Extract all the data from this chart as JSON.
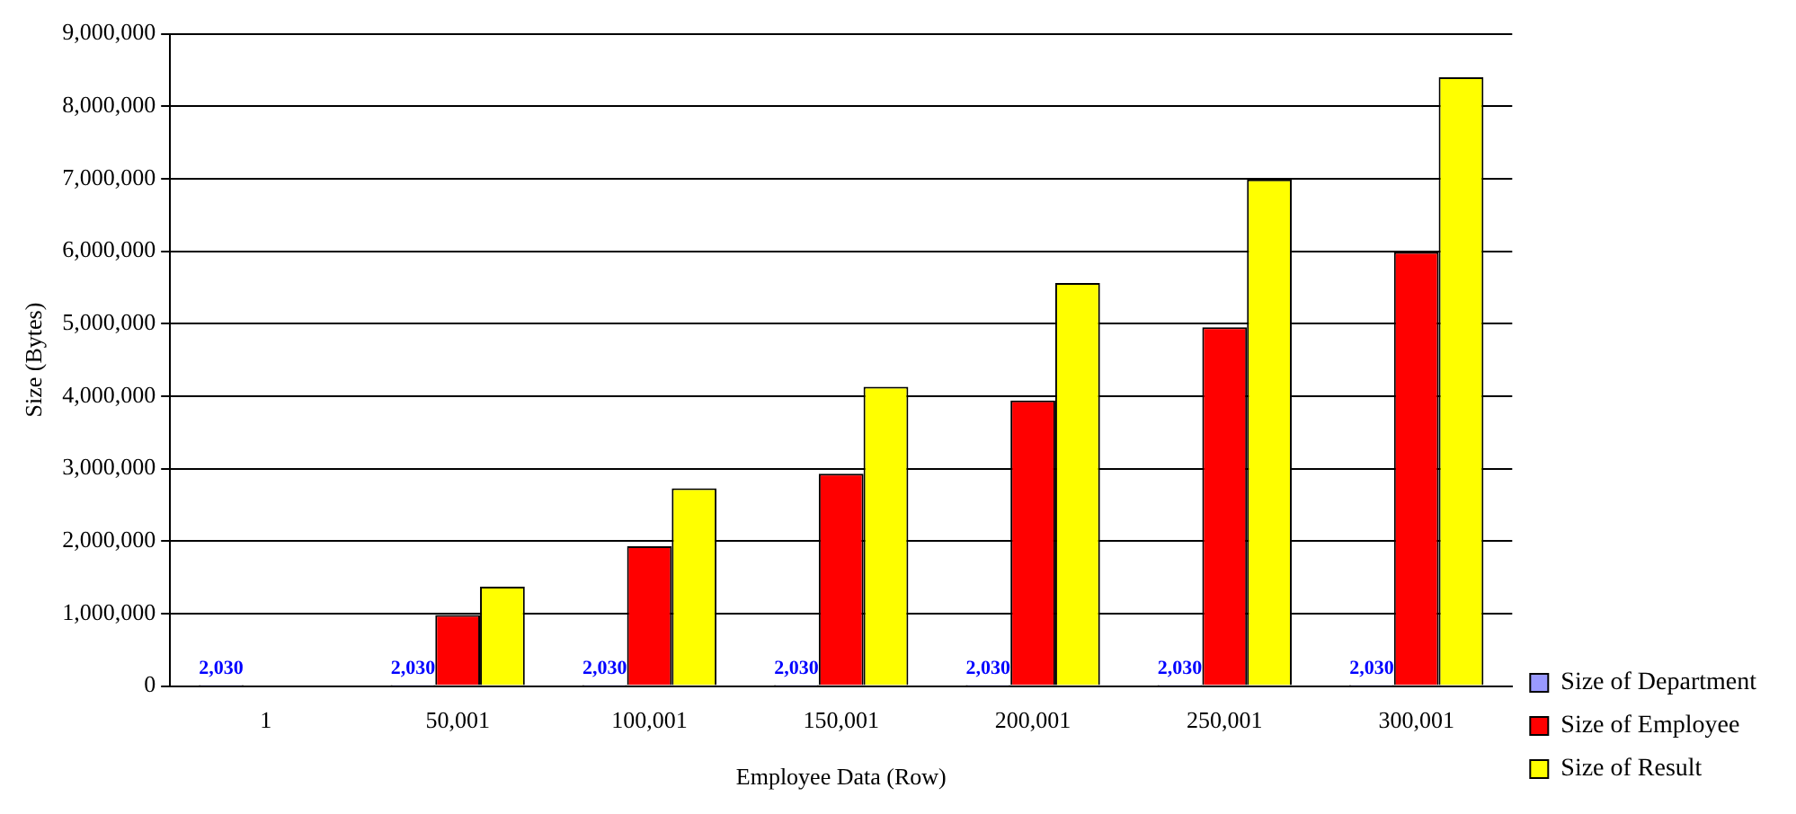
{
  "chart_data": {
    "type": "bar",
    "xlabel": "Employee Data (Row)",
    "ylabel": "Size (Bytes)",
    "categories": [
      "1",
      "50,001",
      "100,001",
      "150,001",
      "200,001",
      "250,001",
      "300,001"
    ],
    "series": [
      {
        "name": "Size of Department",
        "color": "#9999ff",
        "values": [
          2030,
          2030,
          2030,
          2030,
          2030,
          2030,
          2030
        ],
        "value_labels": [
          "2,030",
          "2,030",
          "2,030",
          "2,030",
          "2,030",
          "2,030",
          "2,030"
        ]
      },
      {
        "name": "Size of Employee",
        "color": "#ff0000",
        "values": [
          0,
          980000,
          1930000,
          2930000,
          3940000,
          4950000,
          5990000
        ]
      },
      {
        "name": "Size of Result",
        "color": "#ffff00",
        "values": [
          0,
          1370000,
          2730000,
          4130000,
          5560000,
          6990000,
          8400000
        ]
      }
    ],
    "ylim": [
      0,
      9000000
    ],
    "yticks": [
      0,
      {
        "value": 1000000,
        "label": "1,000,000"
      },
      {
        "value": 2000000,
        "label": "2,000,000"
      },
      {
        "value": 3000000,
        "label": "3,000,000"
      },
      {
        "value": 4000000,
        "label": "4,000,000"
      },
      {
        "value": 5000000,
        "label": "5,000,000"
      },
      {
        "value": 6000000,
        "label": "6,000,000"
      },
      {
        "value": 7000000,
        "label": "7,000,000"
      },
      {
        "value": 8000000,
        "label": "8,000,000"
      },
      {
        "value": 9000000,
        "label": "9,000,000"
      }
    ],
    "grid": "y",
    "legend": "bottom right"
  }
}
